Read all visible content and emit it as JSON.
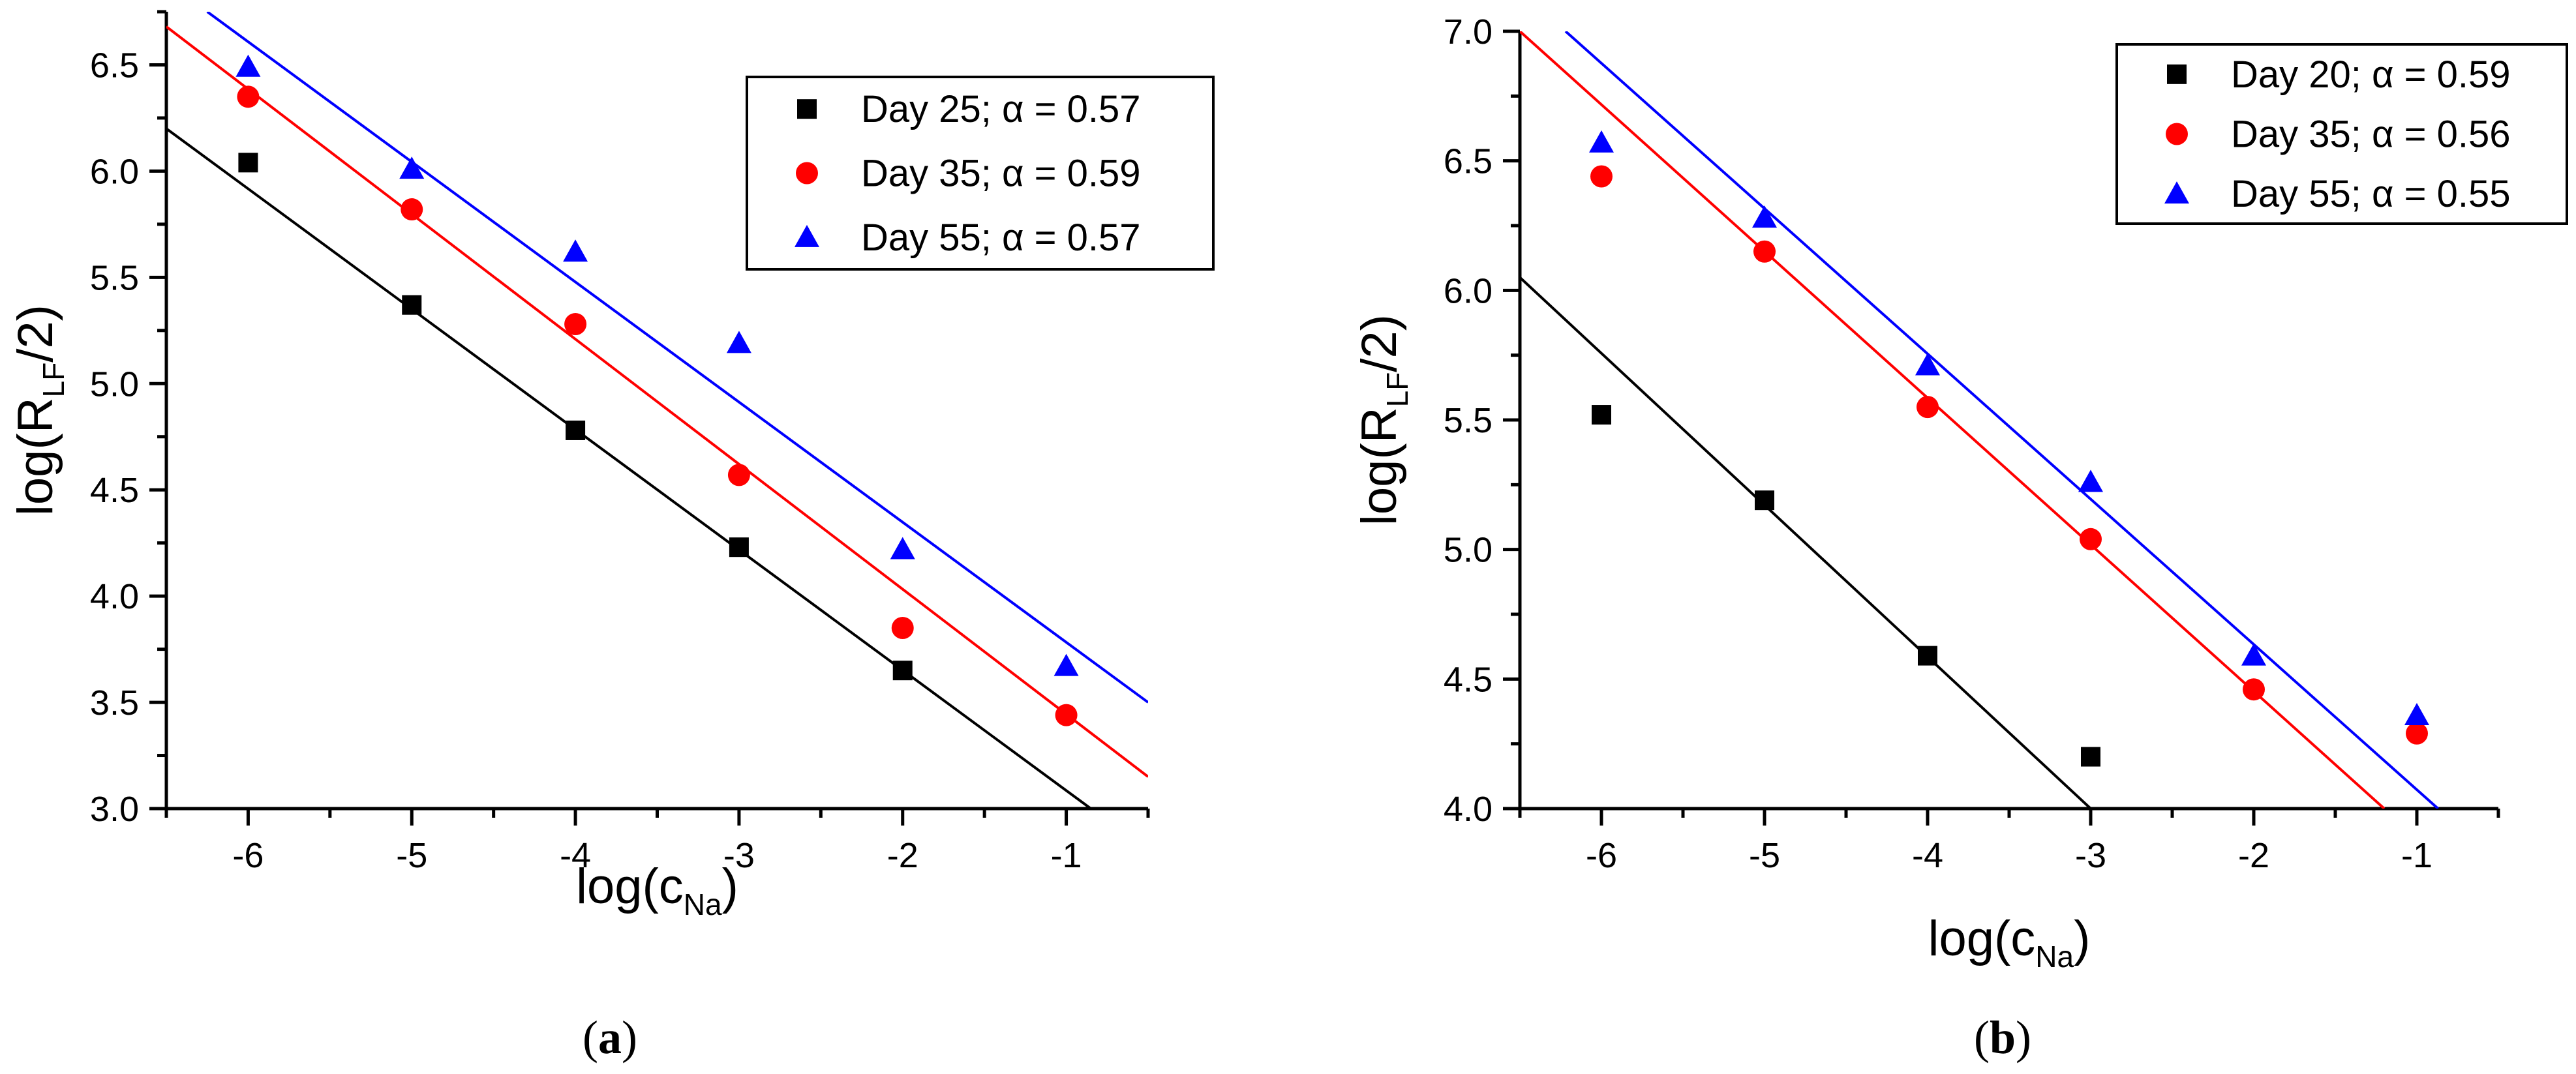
{
  "chart_data": [
    {
      "type": "scatter",
      "panel_label": "a",
      "xlabel": "log(c",
      "xlabel_sub": "Na",
      "xlabel_end": ")",
      "ylabel": "log(R",
      "ylabel_sub": "LF",
      "ylabel_end": "/2)",
      "xlim": [
        -6.5,
        -0.5
      ],
      "ylim": [
        3.0,
        6.75
      ],
      "xticks": [
        "-6",
        "-5",
        "-4",
        "-3",
        "-2",
        "-1"
      ],
      "yticks": [
        "3.0",
        "3.5",
        "4.0",
        "4.5",
        "5.0",
        "5.5",
        "6.0",
        "6.5"
      ],
      "grid": false,
      "legend_position": "top-right",
      "series": [
        {
          "name": "Day 25; α = 0.57",
          "marker": "square",
          "color": "#000000",
          "x": [
            -6,
            -5,
            -4,
            -3,
            -2
          ],
          "y": [
            6.04,
            5.37,
            4.78,
            4.23,
            3.65
          ],
          "fit": {
            "x": [
              -6.5,
              -0.85
            ],
            "y": [
              6.2,
              3.0
            ]
          }
        },
        {
          "name": "Day 35; α = 0.59",
          "marker": "circle",
          "color": "#ff0000",
          "x": [
            -6,
            -5,
            -4,
            -3,
            -2,
            -1
          ],
          "y": [
            6.35,
            5.82,
            5.28,
            4.57,
            3.85,
            3.44
          ],
          "fit": {
            "x": [
              -6.5,
              -0.5
            ],
            "y": [
              6.68,
              3.15
            ]
          }
        },
        {
          "name": "Day 55; α = 0.57",
          "marker": "triangle",
          "color": "#0000ff",
          "x": [
            -6,
            -5,
            -4,
            -3,
            -2,
            -1
          ],
          "y": [
            6.49,
            6.01,
            5.62,
            5.19,
            4.22,
            3.67
          ],
          "fit": {
            "x": [
              -6.25,
              -0.5
            ],
            "y": [
              6.75,
              3.5
            ]
          }
        }
      ]
    },
    {
      "type": "scatter",
      "panel_label": "b",
      "xlabel": "log(c",
      "xlabel_sub": "Na",
      "xlabel_end": ")",
      "ylabel": "log(R",
      "ylabel_sub": "LF",
      "ylabel_end": "/2)",
      "xlim": [
        -6.5,
        -0.5
      ],
      "ylim": [
        4.0,
        7.0
      ],
      "xticks": [
        "-6",
        "-5",
        "-4",
        "-3",
        "-2",
        "-1"
      ],
      "yticks": [
        "4.0",
        "4.5",
        "5.0",
        "5.5",
        "6.0",
        "6.5",
        "7.0"
      ],
      "grid": false,
      "legend_position": "top-right",
      "series": [
        {
          "name": "Day 20; α = 0.59",
          "marker": "square",
          "color": "#000000",
          "x": [
            -6,
            -5,
            -4,
            -3
          ],
          "y": [
            5.52,
            5.19,
            4.59,
            4.2
          ],
          "fit": {
            "x": [
              -6.5,
              -3.0
            ],
            "y": [
              6.05,
              4.0
            ]
          }
        },
        {
          "name": "Day 35; α = 0.56",
          "marker": "circle",
          "color": "#ff0000",
          "x": [
            -6,
            -5,
            -4,
            -3,
            -2,
            -1
          ],
          "y": [
            6.44,
            6.15,
            5.55,
            5.04,
            4.46,
            4.29
          ],
          "fit": {
            "x": [
              -6.5,
              -1.2
            ],
            "y": [
              7.0,
              4.0
            ]
          }
        },
        {
          "name": "Day 55; α = 0.55",
          "marker": "triangle",
          "color": "#0000ff",
          "x": [
            -6,
            -5,
            -4,
            -3,
            -2,
            -1
          ],
          "y": [
            6.57,
            6.28,
            5.71,
            5.26,
            4.59,
            4.36
          ],
          "fit": {
            "x": [
              -6.22,
              -0.87
            ],
            "y": [
              7.0,
              4.0
            ]
          }
        }
      ]
    }
  ]
}
